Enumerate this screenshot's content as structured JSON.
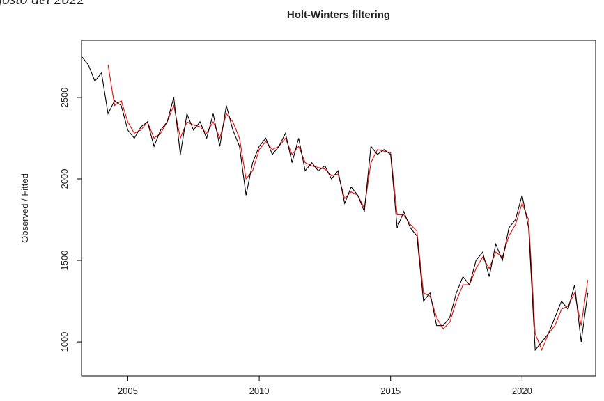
{
  "chart_data": {
    "type": "line",
    "header_note": "gosto del 2022",
    "title": "Holt-Winters filtering",
    "ylabel": "Observed / Fitted",
    "x": [
      2003.25,
      2003.5,
      2003.75,
      2004,
      2004.25,
      2004.5,
      2004.75,
      2005,
      2005.25,
      2005.5,
      2005.75,
      2006,
      2006.25,
      2006.5,
      2006.75,
      2007,
      2007.25,
      2007.5,
      2007.75,
      2008,
      2008.25,
      2008.5,
      2008.75,
      2009,
      2009.25,
      2009.5,
      2009.75,
      2010,
      2010.25,
      2010.5,
      2010.75,
      2011,
      2011.25,
      2011.5,
      2011.75,
      2012,
      2012.25,
      2012.5,
      2012.75,
      2013,
      2013.25,
      2013.5,
      2013.75,
      2014,
      2014.25,
      2014.5,
      2014.75,
      2015,
      2015.25,
      2015.5,
      2015.75,
      2016,
      2016.25,
      2016.5,
      2016.75,
      2017,
      2017.25,
      2017.5,
      2017.75,
      2018,
      2018.25,
      2018.5,
      2018.75,
      2019,
      2019.25,
      2019.5,
      2019.75,
      2020,
      2020.25,
      2020.5,
      2020.75,
      2021,
      2021.25,
      2021.5,
      2021.75,
      2022,
      2022.25,
      2022.5
    ],
    "series": [
      {
        "name": "Observed",
        "color": "#000000",
        "values": [
          2750,
          2700,
          2600,
          2650,
          2400,
          2480,
          2450,
          2300,
          2250,
          2320,
          2350,
          2200,
          2300,
          2350,
          2500,
          2150,
          2400,
          2300,
          2350,
          2250,
          2400,
          2200,
          2450,
          2300,
          2200,
          1900,
          2100,
          2200,
          2250,
          2150,
          2200,
          2280,
          2100,
          2250,
          2050,
          2100,
          2050,
          2080,
          2000,
          2050,
          1850,
          1950,
          1900,
          1800,
          2200,
          2150,
          2180,
          2150,
          1700,
          1800,
          1700,
          1650,
          1250,
          1300,
          1100,
          1100,
          1150,
          1300,
          1400,
          1350,
          1500,
          1550,
          1400,
          1600,
          1500,
          1700,
          1750,
          1900,
          1700,
          950,
          1000,
          1050,
          1150,
          1250,
          1200,
          1350,
          1000,
          1300
        ]
      },
      {
        "name": "Fitted",
        "color": "#ff0000",
        "values": [
          null,
          null,
          null,
          null,
          2700,
          2450,
          2480,
          2350,
          2280,
          2300,
          2350,
          2250,
          2280,
          2350,
          2450,
          2250,
          2350,
          2330,
          2320,
          2280,
          2350,
          2250,
          2400,
          2350,
          2250,
          2000,
          2050,
          2180,
          2230,
          2180,
          2200,
          2250,
          2150,
          2200,
          2100,
          2080,
          2070,
          2060,
          2020,
          2030,
          1880,
          1920,
          1900,
          1820,
          2100,
          2180,
          2170,
          2160,
          1780,
          1780,
          1720,
          1680,
          1300,
          1280,
          1150,
          1080,
          1120,
          1250,
          1350,
          1350,
          1450,
          1520,
          1450,
          1550,
          1520,
          1650,
          1720,
          1850,
          1750,
          1050,
          950,
          1050,
          1100,
          1200,
          1220,
          1300,
          1100,
          1380
        ]
      }
    ],
    "xlim": [
      2003.24,
      2022.8
    ],
    "xticks": [
      2005,
      2010,
      2015,
      2020
    ],
    "ylim": [
      791,
      2850
    ],
    "yticks": [
      1000,
      1500,
      2000,
      2500
    ]
  }
}
